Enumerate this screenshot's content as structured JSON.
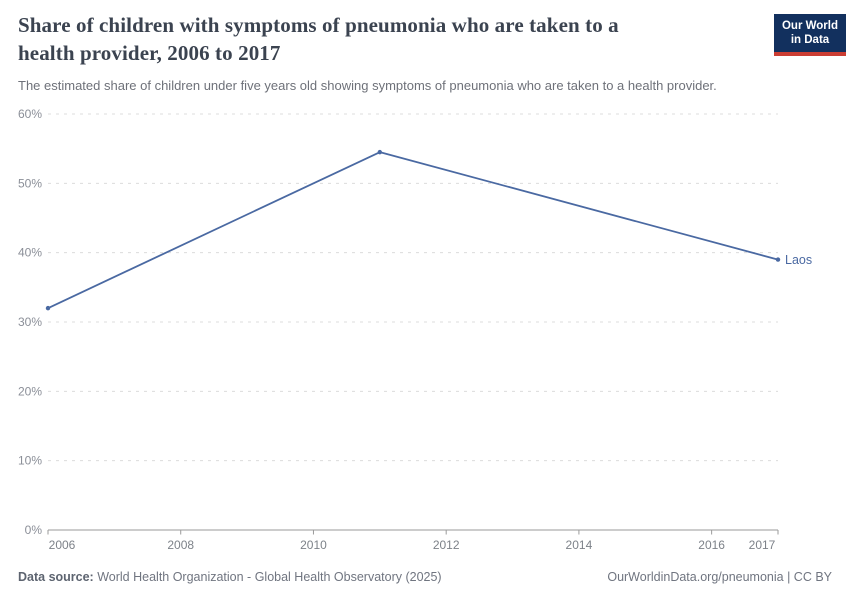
{
  "header": {
    "title_line1": "Share of children with symptoms of pneumonia who are taken to a",
    "title_line2": "health provider, 2006 to 2017",
    "subtitle": "The estimated share of children under five years old showing symptoms of pneumonia who are taken to a health provider.",
    "logo": {
      "line1": "Our World",
      "line2": "in Data",
      "bg_color": "#12305e",
      "bar_color": "#cb3d33"
    }
  },
  "chart_data": {
    "type": "line",
    "title": "Share of children with symptoms of pneumonia who are taken to a health provider, 2006 to 2017",
    "x": [
      2006,
      2011,
      2017
    ],
    "series": [
      {
        "name": "Laos",
        "color": "#4a69a2",
        "values": [
          32,
          54.5,
          39
        ]
      }
    ],
    "xlim": [
      2006,
      2017
    ],
    "ylim": [
      0,
      60
    ],
    "x_ticks": [
      2006,
      2008,
      2010,
      2012,
      2014,
      2016,
      2017
    ],
    "y_ticks": [
      0,
      10,
      20,
      30,
      40,
      50,
      60
    ],
    "y_tick_suffix": "%",
    "grid": "horizontal-dashed",
    "legend_position": "end-of-line-label"
  },
  "colors": {
    "grid": "#dcdcdc",
    "axis": "#9a9a9a",
    "line": "#4a69a2"
  },
  "footer": {
    "datasource_label": "Data source:",
    "datasource_text": "World Health Organization - Global Health Observatory (2025)",
    "right": "OurWorldinData.org/pneumonia | CC BY"
  }
}
